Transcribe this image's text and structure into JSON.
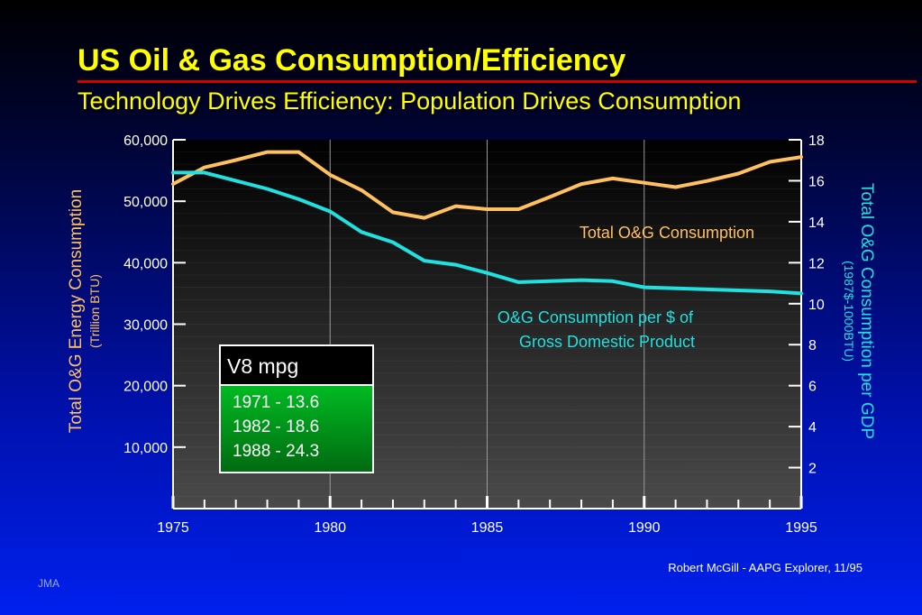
{
  "slide": {
    "title": "US Oil & Gas Consumption/Efficiency",
    "subtitle": "Technology Drives Efficiency: Population Drives Consumption",
    "credit": "Robert McGill - AAPG Explorer, 11/95",
    "initials": "JMA"
  },
  "colors": {
    "title": "#ffff00",
    "title_rule": "#d40000",
    "consumption_series": "#ffc060",
    "efficiency_series": "#20e0e0",
    "left_axis_text": "#ffc060",
    "right_axis_text": "#20e0e0",
    "mpg_box_header": "#000000",
    "mpg_box_body": "#00aa22"
  },
  "chart_data": {
    "type": "line",
    "xlabel": "",
    "x_ticks": [
      "1975",
      "1980",
      "1985",
      "1990",
      "1995"
    ],
    "xlim": [
      1975,
      1995
    ],
    "y_left": {
      "label": "Total O&G Energy Consumption",
      "sublabel": "(Trillion BTU)",
      "ylim": [
        0,
        60000
      ],
      "ticks": [
        "60,000",
        "50,000",
        "40,000",
        "30,000",
        "20,000",
        "10,000"
      ]
    },
    "y_right": {
      "label": "Total O&G Consumption per GDP",
      "sublabel": "(1987$-1000BTU)",
      "ylim": [
        0,
        18
      ],
      "ticks": [
        "18",
        "16",
        "14",
        "12",
        "10",
        "8",
        "6",
        "4",
        "2"
      ]
    },
    "grid_x": true,
    "series": [
      {
        "name": "Total O&G Consumption",
        "axis": "left",
        "x": [
          1975,
          1976,
          1977,
          1978,
          1979,
          1980,
          1981,
          1982,
          1983,
          1984,
          1985,
          1986,
          1987,
          1988,
          1989,
          1990,
          1991,
          1992,
          1993,
          1994,
          1995
        ],
        "values": [
          52800,
          55500,
          56700,
          58000,
          58000,
          54300,
          51800,
          48200,
          47300,
          49200,
          48700,
          48700,
          50700,
          52800,
          53700,
          53000,
          52300,
          53300,
          54500,
          56400,
          57200
        ]
      },
      {
        "name": "O&G Consumption per $ of Gross Domestic Product",
        "label_lines": [
          "O&G Consumption per $ of",
          "Gross Domestic Product"
        ],
        "axis": "right",
        "x": [
          1975,
          1976,
          1977,
          1978,
          1979,
          1980,
          1981,
          1982,
          1983,
          1984,
          1985,
          1986,
          1987,
          1988,
          1989,
          1990,
          1991,
          1992,
          1993,
          1994,
          1995
        ],
        "values": [
          16.4,
          16.4,
          16.0,
          15.6,
          15.1,
          14.5,
          13.5,
          13.0,
          12.1,
          11.9,
          11.5,
          11.05,
          11.1,
          11.15,
          11.1,
          10.8,
          10.75,
          10.7,
          10.65,
          10.6,
          10.5
        ]
      }
    ],
    "annotation_box": {
      "title": "V8 mpg",
      "lines": [
        "1971 - 13.6",
        "1982 - 18.6",
        "1988 - 24.3"
      ]
    }
  }
}
